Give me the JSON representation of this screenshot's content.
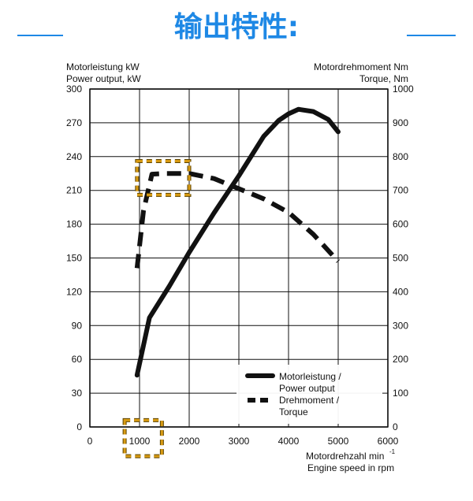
{
  "header": {
    "title": "输出特性:",
    "accent_color": "#1e88e5"
  },
  "chart_data": {
    "type": "line",
    "xlabel": {
      "line1": "Motordrehzahl min",
      "superscript": "-1",
      "line2": "Engine speed in rpm"
    },
    "ylabel_left": {
      "line1": "Motorleistung kW",
      "line2": "Power output, kW"
    },
    "ylabel_right": {
      "line1": "Motordrehmoment Nm",
      "line2": "Torque, Nm"
    },
    "x_ticks": [
      0,
      1000,
      2000,
      3000,
      4000,
      5000,
      6000
    ],
    "y_left_ticks": [
      0,
      30,
      60,
      90,
      120,
      150,
      180,
      210,
      240,
      270,
      300
    ],
    "y_right_ticks": [
      0,
      100,
      200,
      300,
      400,
      500,
      600,
      700,
      800,
      900,
      1000
    ],
    "xlim": [
      0,
      6000
    ],
    "ylim_left": [
      0,
      300
    ],
    "ylim_right": [
      0,
      1000
    ],
    "grid": true,
    "legend_placement": "bottom-right",
    "series": [
      {
        "name": "Motorleistung /\nPower output",
        "axis": "left",
        "line_style": "solid",
        "color": "#111111",
        "points": [
          [
            950,
            46
          ],
          [
            1200,
            97
          ],
          [
            1600,
            125
          ],
          [
            2000,
            155
          ],
          [
            2500,
            190
          ],
          [
            3000,
            223
          ],
          [
            3500,
            258
          ],
          [
            3800,
            272
          ],
          [
            4000,
            278
          ],
          [
            4200,
            282
          ],
          [
            4500,
            280
          ],
          [
            4800,
            273
          ],
          [
            5000,
            262
          ]
        ]
      },
      {
        "name": "Drehmoment /\nTorque",
        "axis": "right",
        "line_style": "dashed",
        "color": "#111111",
        "points": [
          [
            950,
            470
          ],
          [
            1080,
            640
          ],
          [
            1250,
            748
          ],
          [
            1500,
            750
          ],
          [
            2000,
            750
          ],
          [
            2500,
            735
          ],
          [
            3000,
            705
          ],
          [
            3500,
            675
          ],
          [
            4000,
            635
          ],
          [
            4500,
            570
          ],
          [
            5000,
            490
          ]
        ]
      }
    ],
    "highlights": [
      {
        "type": "box",
        "color": "#d89b13",
        "x_range": [
          950,
          2000
        ],
        "y_range_left": [
          206,
          236
        ]
      },
      {
        "type": "box",
        "color": "#d89b13",
        "x_range": [
          700,
          1450
        ],
        "y_range_left": [
          -26,
          6
        ]
      }
    ]
  }
}
